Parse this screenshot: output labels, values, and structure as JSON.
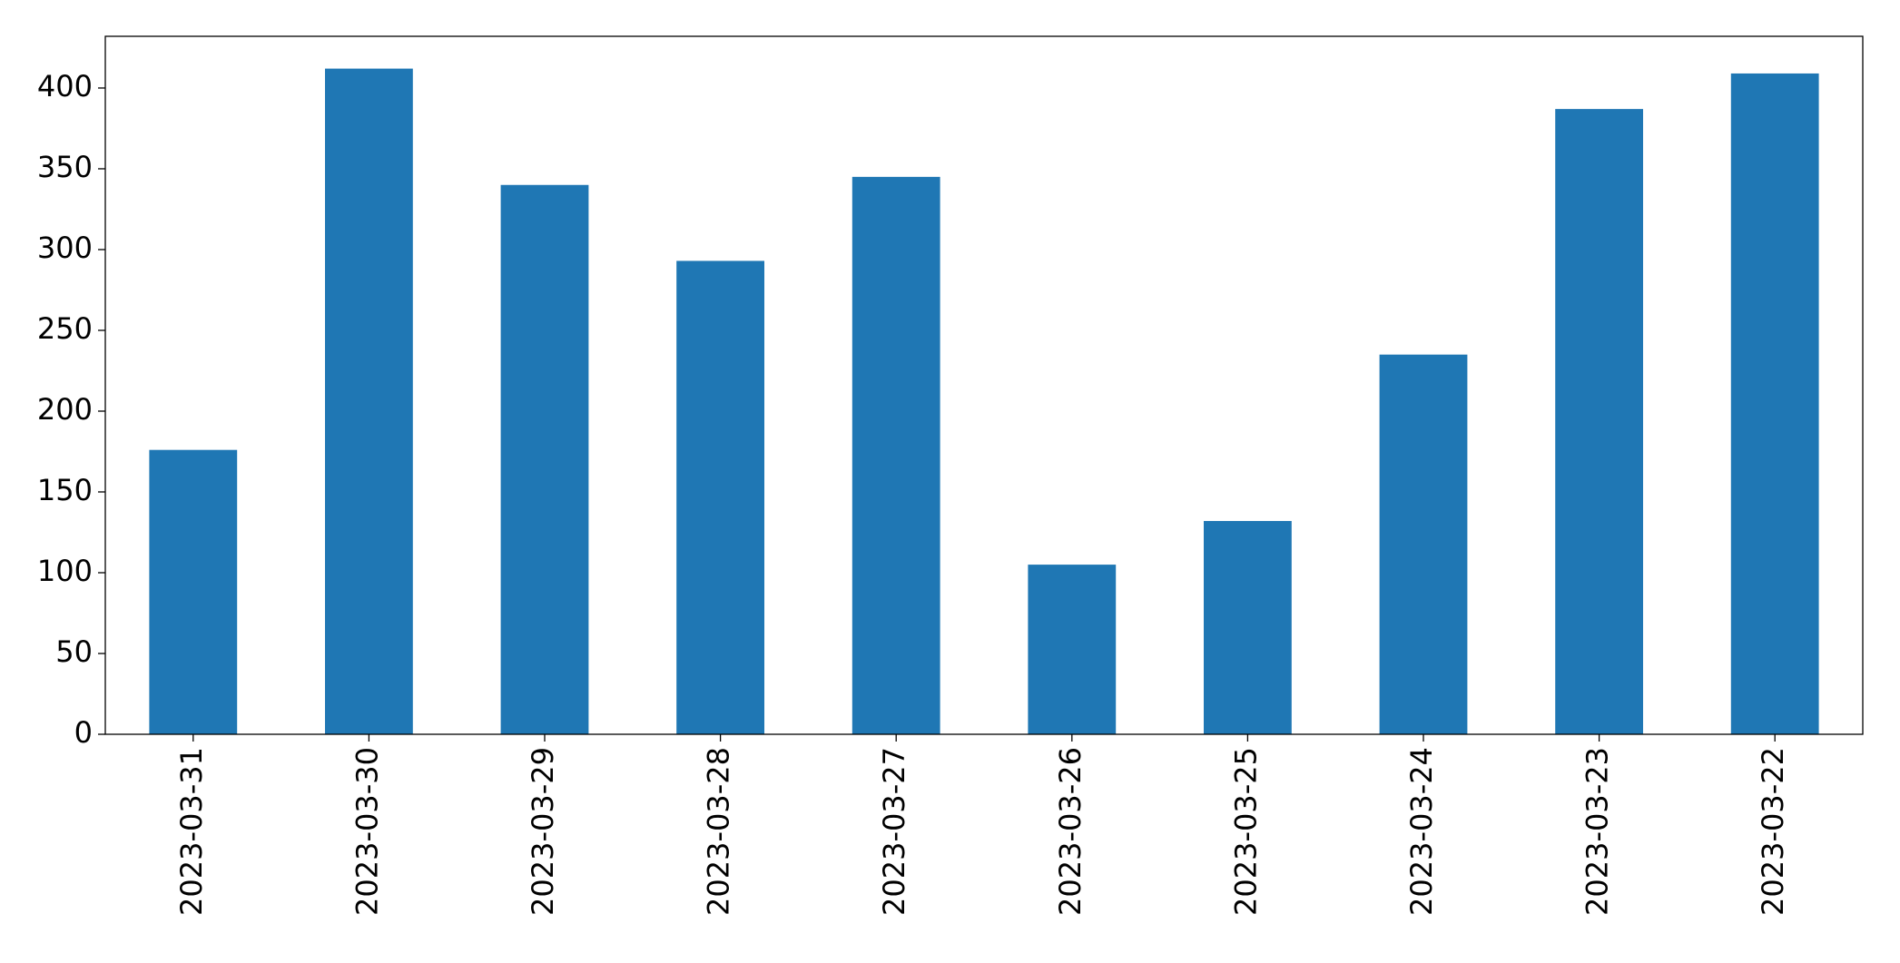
{
  "chart_data": {
    "type": "bar",
    "categories": [
      "2023-03-31",
      "2023-03-30",
      "2023-03-29",
      "2023-03-28",
      "2023-03-27",
      "2023-03-26",
      "2023-03-25",
      "2023-03-24",
      "2023-03-23",
      "2023-03-22"
    ],
    "values": [
      176,
      412,
      340,
      293,
      345,
      105,
      132,
      235,
      387,
      409
    ],
    "color": "#1f77b4",
    "ylim": [
      0,
      432
    ],
    "yticks": [
      0,
      50,
      100,
      150,
      200,
      250,
      300,
      350,
      400
    ],
    "grid": false
  }
}
